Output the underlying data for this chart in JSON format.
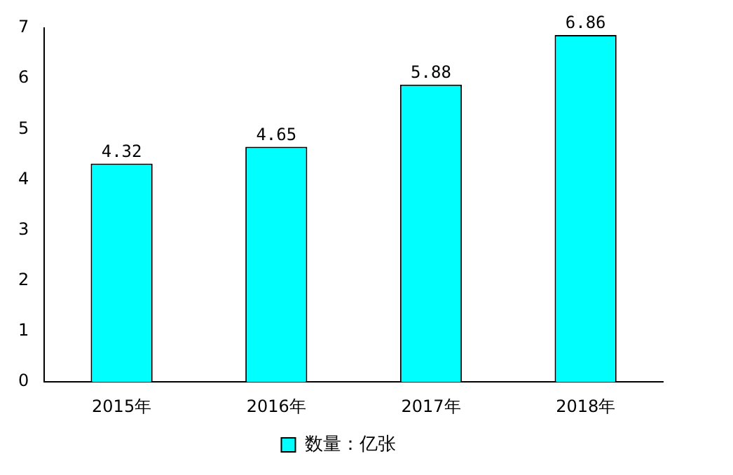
{
  "chart_data": {
    "type": "bar",
    "categories": [
      "2015年",
      "2016年",
      "2017年",
      "2018年"
    ],
    "series": [
      {
        "name": "数量：亿张",
        "color": "#00ffff",
        "values": [
          4.32,
          4.65,
          5.88,
          6.86
        ]
      }
    ],
    "ylim": [
      0,
      7
    ],
    "yticks": [
      0,
      1,
      2,
      3,
      4,
      5,
      6,
      7
    ],
    "grid": false,
    "legend": "bottom",
    "data_labels": true
  }
}
